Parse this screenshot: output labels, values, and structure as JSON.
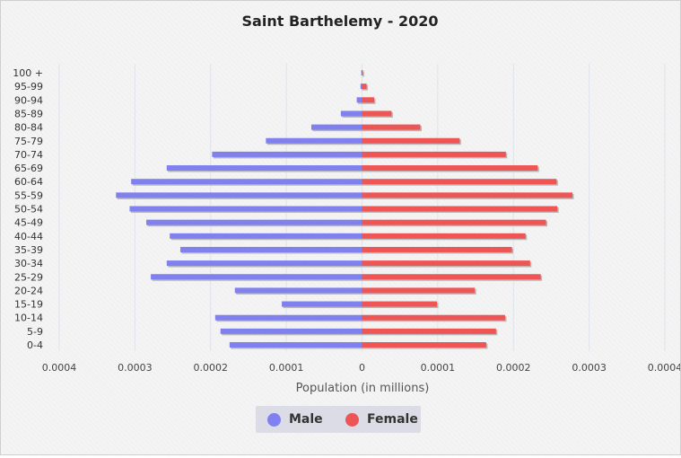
{
  "chart_data": {
    "type": "bar",
    "orientation": "horizontal-pyramid",
    "title": "Saint Barthelemy - 2020",
    "xlabel": "Population (in millions)",
    "ylabel": "",
    "xlim": [
      -0.0004,
      0.0004
    ],
    "x_ticks": [
      "0.0004",
      "0.0003",
      "0.0002",
      "0.0001",
      "0",
      "0.0001",
      "0.0002",
      "0.0003",
      "0.0004"
    ],
    "grid": true,
    "legend_position": "bottom-center",
    "categories": [
      "100 +",
      "95-99",
      "90-94",
      "85-89",
      "80-84",
      "75-79",
      "70-74",
      "65-69",
      "60-64",
      "55-59",
      "50-54",
      "45-49",
      "40-44",
      "35-39",
      "30-34",
      "25-29",
      "20-24",
      "15-19",
      "10-14",
      "5-9",
      "0-4"
    ],
    "series": [
      {
        "name": "Male",
        "color": "#8080ee",
        "values": [
          1e-06,
          2e-06,
          7e-06,
          2.8e-05,
          6.7e-05,
          0.000127,
          0.000198,
          0.000258,
          0.000305,
          0.000325,
          0.000307,
          0.000285,
          0.000254,
          0.00024,
          0.000258,
          0.000279,
          0.000168,
          0.000106,
          0.000194,
          0.000187,
          0.000175
        ]
      },
      {
        "name": "Female",
        "color": "#ee5555",
        "values": [
          1e-06,
          6e-06,
          1.6e-05,
          3.9e-05,
          7.7e-05,
          0.000129,
          0.00019,
          0.000232,
          0.000257,
          0.000278,
          0.000258,
          0.000243,
          0.000216,
          0.000198,
          0.000222,
          0.000236,
          0.000149,
          9.9e-05,
          0.000189,
          0.000177,
          0.000164
        ]
      }
    ]
  }
}
